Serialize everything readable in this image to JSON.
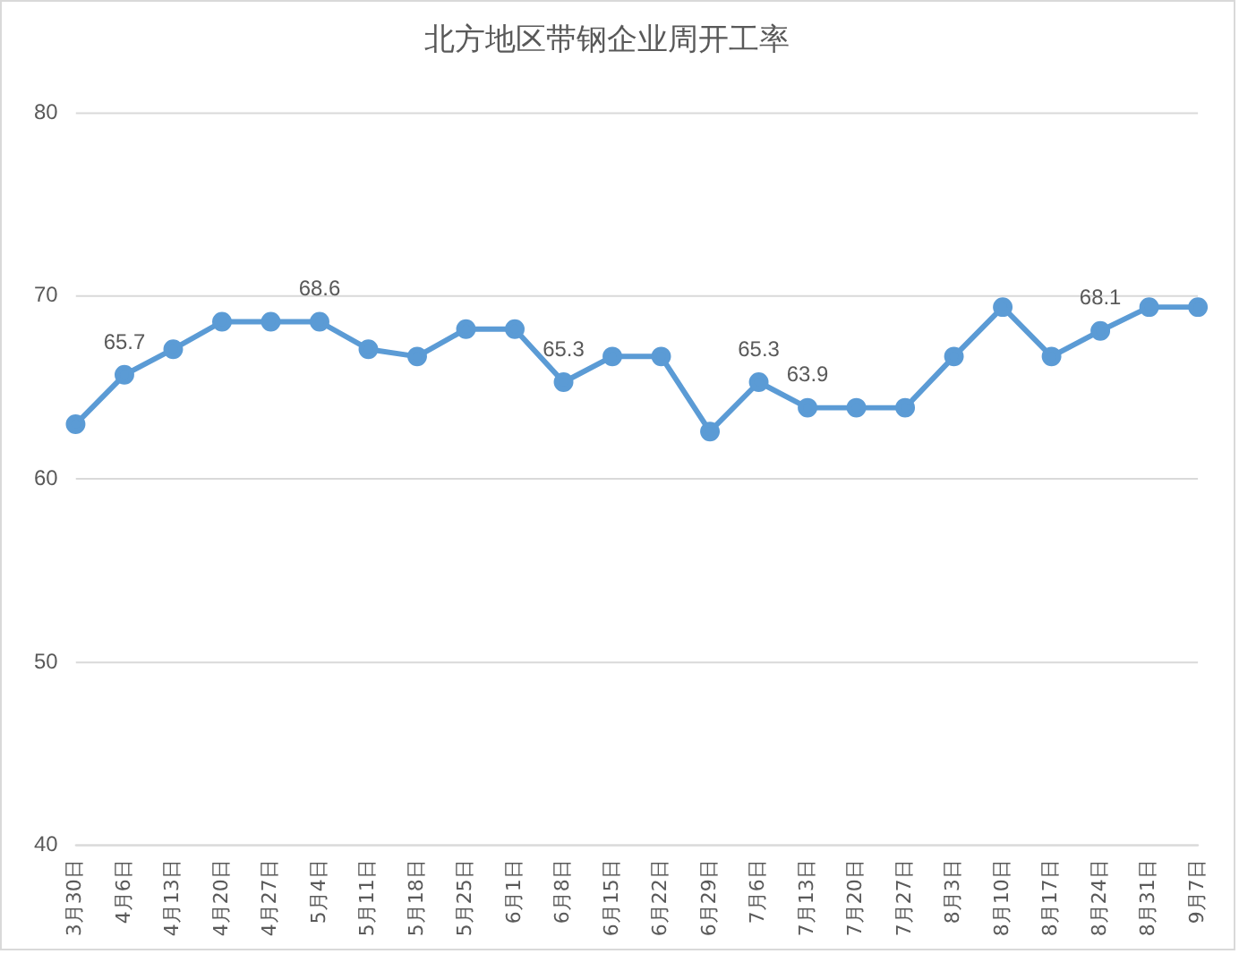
{
  "chart_data": {
    "type": "line",
    "title": "北方地区带钢企业周开工率",
    "categories": [
      "3月30日",
      "4月6日",
      "4月13日",
      "4月20日",
      "4月27日",
      "5月4日",
      "5月11日",
      "5月18日",
      "5月25日",
      "6月1日",
      "6月8日",
      "6月15日",
      "6月22日",
      "6月29日",
      "7月6日",
      "7月13日",
      "7月20日",
      "7月27日",
      "8月3日",
      "8月10日",
      "8月17日",
      "8月24日",
      "8月31日",
      "9月7日"
    ],
    "series": [
      {
        "color": "#5b9bd5",
        "values": [
          63.0,
          65.7,
          67.1,
          68.6,
          68.6,
          68.6,
          67.1,
          66.7,
          68.2,
          68.2,
          65.3,
          66.7,
          66.7,
          62.6,
          65.3,
          63.9,
          63.9,
          63.9,
          66.7,
          69.4,
          66.7,
          68.1,
          69.4,
          69.4
        ],
        "value_labels": [
          null,
          "65.7",
          null,
          null,
          null,
          "68.6",
          null,
          null,
          null,
          null,
          "65.3",
          null,
          null,
          null,
          "65.3",
          "63.9",
          null,
          null,
          null,
          null,
          null,
          "68.1",
          null,
          null
        ]
      }
    ],
    "ylim": [
      40,
      80
    ],
    "yticks": [
      40,
      50,
      60,
      70,
      80
    ],
    "grid": "y",
    "marker": "circle",
    "line_style": "solid",
    "legend": false
  }
}
